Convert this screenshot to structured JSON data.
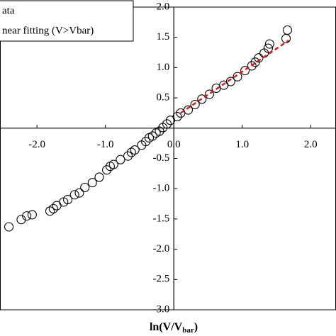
{
  "chart_data": {
    "type": "scatter",
    "xlabel": "ln(V/V",
    "xlabel_sub": "bar",
    "xlabel_end": ")",
    "xlim": [
      -2.54,
      2.37
    ],
    "ylim": [
      -3.0,
      2.0
    ],
    "xticks": [
      {
        "value": -2,
        "label": "-2.0"
      },
      {
        "value": -1,
        "label": "-1.0"
      },
      {
        "value": 0,
        "label": "0.0"
      },
      {
        "value": 1,
        "label": "1.0"
      },
      {
        "value": 2,
        "label": "2.0"
      }
    ],
    "yticks": [
      {
        "value": 2,
        "label": "2.0"
      },
      {
        "value": 1.5,
        "label": "1.5"
      },
      {
        "value": 1,
        "label": "1.0"
      },
      {
        "value": 0.5,
        "label": "0.5"
      },
      {
        "value": -0.5,
        "label": "-0.5"
      },
      {
        "value": -1,
        "label": "-1.0"
      },
      {
        "value": -1.5,
        "label": "-1.5"
      },
      {
        "value": -2,
        "label": "-2.0"
      },
      {
        "value": -2.5,
        "label": "-2.5"
      },
      {
        "value": -3,
        "label": "-3.0"
      }
    ],
    "legend": "top-left",
    "series": [
      {
        "name": "ata",
        "kind": "marker",
        "color": "#000000",
        "x": [
          -2.41,
          -2.23,
          -2.15,
          -2.07,
          -1.81,
          -1.76,
          -1.71,
          -1.61,
          -1.55,
          -1.45,
          -1.38,
          -1.3,
          -1.19,
          -1.09,
          -0.98,
          -0.93,
          -0.88,
          -0.78,
          -0.67,
          -0.62,
          -0.57,
          -0.47,
          -0.41,
          -0.36,
          -0.31,
          -0.26,
          -0.21,
          -0.16,
          -0.1,
          -0.05,
          0.05,
          0.1,
          0.21,
          0.31,
          0.41,
          0.52,
          0.62,
          0.73,
          0.83,
          0.93,
          1.04,
          1.14,
          1.19,
          1.24,
          1.32,
          1.38,
          1.4,
          1.64,
          1.66
        ],
        "values": [
          -1.63,
          -1.51,
          -1.45,
          -1.43,
          -1.37,
          -1.33,
          -1.28,
          -1.22,
          -1.18,
          -1.1,
          -1.07,
          -0.98,
          -0.9,
          -0.81,
          -0.69,
          -0.63,
          -0.6,
          -0.52,
          -0.46,
          -0.4,
          -0.36,
          -0.28,
          -0.22,
          -0.16,
          -0.13,
          -0.08,
          -0.05,
          0.01,
          0.07,
          0.13,
          0.19,
          0.25,
          0.3,
          0.39,
          0.48,
          0.56,
          0.66,
          0.71,
          0.77,
          0.85,
          0.95,
          1.03,
          1.09,
          1.16,
          1.24,
          1.32,
          1.39,
          1.48,
          1.62
        ]
      },
      {
        "name": "near fitting (V>Vbar)",
        "kind": "line",
        "color": "#d42020",
        "x": [
          0.1,
          1.68
        ],
        "values": [
          0.25,
          1.45
        ]
      }
    ]
  }
}
